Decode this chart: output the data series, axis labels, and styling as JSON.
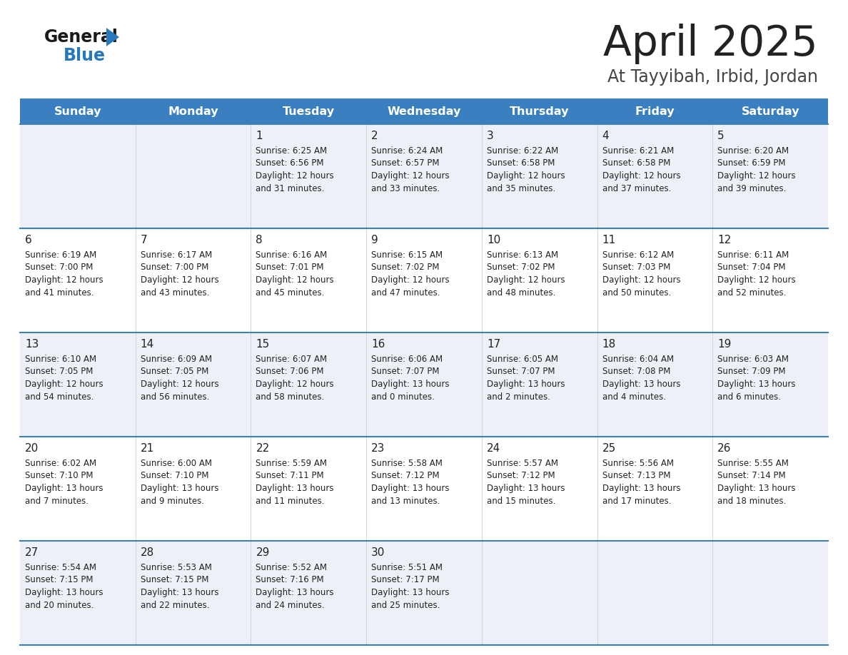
{
  "title": "April 2025",
  "subtitle": "At Tayyibah, Irbid, Jordan",
  "days_of_week": [
    "Sunday",
    "Monday",
    "Tuesday",
    "Wednesday",
    "Thursday",
    "Friday",
    "Saturday"
  ],
  "header_bg": "#3a7fbf",
  "header_text_color": "#ffffff",
  "row_bg_light": "#edf1f7",
  "row_bg_white": "#ffffff",
  "cell_text_color": "#222222",
  "border_color": "#4080b0",
  "title_color": "#222222",
  "subtitle_color": "#444444",
  "logo_black": "#1a1a1a",
  "logo_blue": "#2878be",
  "weeks": [
    [
      {
        "day": "",
        "sunrise": "",
        "sunset": "",
        "daylight_h": "",
        "daylight_m": ""
      },
      {
        "day": "",
        "sunrise": "",
        "sunset": "",
        "daylight_h": "",
        "daylight_m": ""
      },
      {
        "day": "1",
        "sunrise": "6:25 AM",
        "sunset": "6:56 PM",
        "daylight_h": "12 hours",
        "daylight_m": "and 31 minutes."
      },
      {
        "day": "2",
        "sunrise": "6:24 AM",
        "sunset": "6:57 PM",
        "daylight_h": "12 hours",
        "daylight_m": "and 33 minutes."
      },
      {
        "day": "3",
        "sunrise": "6:22 AM",
        "sunset": "6:58 PM",
        "daylight_h": "12 hours",
        "daylight_m": "and 35 minutes."
      },
      {
        "day": "4",
        "sunrise": "6:21 AM",
        "sunset": "6:58 PM",
        "daylight_h": "12 hours",
        "daylight_m": "and 37 minutes."
      },
      {
        "day": "5",
        "sunrise": "6:20 AM",
        "sunset": "6:59 PM",
        "daylight_h": "12 hours",
        "daylight_m": "and 39 minutes."
      }
    ],
    [
      {
        "day": "6",
        "sunrise": "6:19 AM",
        "sunset": "7:00 PM",
        "daylight_h": "12 hours",
        "daylight_m": "and 41 minutes."
      },
      {
        "day": "7",
        "sunrise": "6:17 AM",
        "sunset": "7:00 PM",
        "daylight_h": "12 hours",
        "daylight_m": "and 43 minutes."
      },
      {
        "day": "8",
        "sunrise": "6:16 AM",
        "sunset": "7:01 PM",
        "daylight_h": "12 hours",
        "daylight_m": "and 45 minutes."
      },
      {
        "day": "9",
        "sunrise": "6:15 AM",
        "sunset": "7:02 PM",
        "daylight_h": "12 hours",
        "daylight_m": "and 47 minutes."
      },
      {
        "day": "10",
        "sunrise": "6:13 AM",
        "sunset": "7:02 PM",
        "daylight_h": "12 hours",
        "daylight_m": "and 48 minutes."
      },
      {
        "day": "11",
        "sunrise": "6:12 AM",
        "sunset": "7:03 PM",
        "daylight_h": "12 hours",
        "daylight_m": "and 50 minutes."
      },
      {
        "day": "12",
        "sunrise": "6:11 AM",
        "sunset": "7:04 PM",
        "daylight_h": "12 hours",
        "daylight_m": "and 52 minutes."
      }
    ],
    [
      {
        "day": "13",
        "sunrise": "6:10 AM",
        "sunset": "7:05 PM",
        "daylight_h": "12 hours",
        "daylight_m": "and 54 minutes."
      },
      {
        "day": "14",
        "sunrise": "6:09 AM",
        "sunset": "7:05 PM",
        "daylight_h": "12 hours",
        "daylight_m": "and 56 minutes."
      },
      {
        "day": "15",
        "sunrise": "6:07 AM",
        "sunset": "7:06 PM",
        "daylight_h": "12 hours",
        "daylight_m": "and 58 minutes."
      },
      {
        "day": "16",
        "sunrise": "6:06 AM",
        "sunset": "7:07 PM",
        "daylight_h": "13 hours",
        "daylight_m": "and 0 minutes."
      },
      {
        "day": "17",
        "sunrise": "6:05 AM",
        "sunset": "7:07 PM",
        "daylight_h": "13 hours",
        "daylight_m": "and 2 minutes."
      },
      {
        "day": "18",
        "sunrise": "6:04 AM",
        "sunset": "7:08 PM",
        "daylight_h": "13 hours",
        "daylight_m": "and 4 minutes."
      },
      {
        "day": "19",
        "sunrise": "6:03 AM",
        "sunset": "7:09 PM",
        "daylight_h": "13 hours",
        "daylight_m": "and 6 minutes."
      }
    ],
    [
      {
        "day": "20",
        "sunrise": "6:02 AM",
        "sunset": "7:10 PM",
        "daylight_h": "13 hours",
        "daylight_m": "and 7 minutes."
      },
      {
        "day": "21",
        "sunrise": "6:00 AM",
        "sunset": "7:10 PM",
        "daylight_h": "13 hours",
        "daylight_m": "and 9 minutes."
      },
      {
        "day": "22",
        "sunrise": "5:59 AM",
        "sunset": "7:11 PM",
        "daylight_h": "13 hours",
        "daylight_m": "and 11 minutes."
      },
      {
        "day": "23",
        "sunrise": "5:58 AM",
        "sunset": "7:12 PM",
        "daylight_h": "13 hours",
        "daylight_m": "and 13 minutes."
      },
      {
        "day": "24",
        "sunrise": "5:57 AM",
        "sunset": "7:12 PM",
        "daylight_h": "13 hours",
        "daylight_m": "and 15 minutes."
      },
      {
        "day": "25",
        "sunrise": "5:56 AM",
        "sunset": "7:13 PM",
        "daylight_h": "13 hours",
        "daylight_m": "and 17 minutes."
      },
      {
        "day": "26",
        "sunrise": "5:55 AM",
        "sunset": "7:14 PM",
        "daylight_h": "13 hours",
        "daylight_m": "and 18 minutes."
      }
    ],
    [
      {
        "day": "27",
        "sunrise": "5:54 AM",
        "sunset": "7:15 PM",
        "daylight_h": "13 hours",
        "daylight_m": "and 20 minutes."
      },
      {
        "day": "28",
        "sunrise": "5:53 AM",
        "sunset": "7:15 PM",
        "daylight_h": "13 hours",
        "daylight_m": "and 22 minutes."
      },
      {
        "day": "29",
        "sunrise": "5:52 AM",
        "sunset": "7:16 PM",
        "daylight_h": "13 hours",
        "daylight_m": "and 24 minutes."
      },
      {
        "day": "30",
        "sunrise": "5:51 AM",
        "sunset": "7:17 PM",
        "daylight_h": "13 hours",
        "daylight_m": "and 25 minutes."
      },
      {
        "day": "",
        "sunrise": "",
        "sunset": "",
        "daylight_h": "",
        "daylight_m": ""
      },
      {
        "day": "",
        "sunrise": "",
        "sunset": "",
        "daylight_h": "",
        "daylight_m": ""
      },
      {
        "day": "",
        "sunrise": "",
        "sunset": "",
        "daylight_h": "",
        "daylight_m": ""
      }
    ]
  ]
}
